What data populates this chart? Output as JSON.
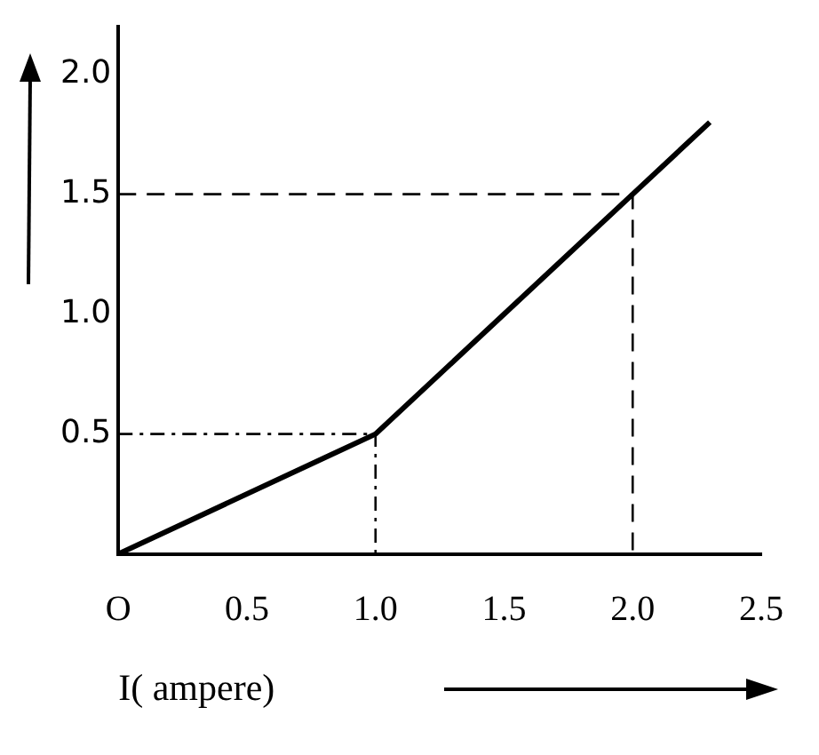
{
  "chart_data": {
    "type": "line",
    "xlabel": "I( ampere)",
    "xlim": [
      0,
      2.5
    ],
    "xticks": [
      {
        "value": 0,
        "label": "O"
      },
      0.5,
      {
        "value": 1,
        "label": "1.0"
      },
      1.5,
      {
        "value": 2,
        "label": "2.0"
      },
      2.5
    ],
    "ylim": [
      0,
      2.2
    ],
    "yticks": [
      0.5,
      {
        "value": 1,
        "label": "1.0"
      },
      1.5,
      {
        "value": 2,
        "label": "2.0"
      }
    ],
    "grid": false,
    "legend": false,
    "marker": "none",
    "series": [
      {
        "color": "#000000",
        "line_style": "solid",
        "x": [
          0,
          1,
          2,
          2.3
        ],
        "values": [
          0,
          0.5,
          1.5,
          1.8
        ]
      },
      {
        "color": "#000000",
        "line_style": "dotted",
        "x": [
          0,
          1,
          1
        ],
        "values": [
          0.5,
          0.5,
          0
        ]
      },
      {
        "color": "#000000",
        "line_style": "dashed",
        "x": [
          0,
          2,
          2
        ],
        "values": [
          1.5,
          1.5,
          0
        ]
      }
    ]
  }
}
